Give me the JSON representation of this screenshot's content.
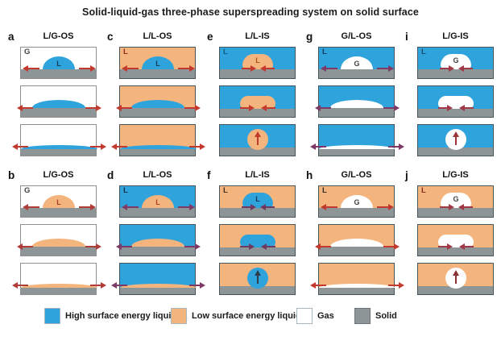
{
  "title": "Solid-liquid-gas three-phase superspreading system on solid surface",
  "colors": {
    "high_surface_energy_liquid": "#2fa3dc",
    "low_surface_energy_liquid": "#f3b47e",
    "gas": "#ffffff",
    "solid": "#8e9596",
    "box_border_dark": "#47555b",
    "box_border_light": "#8f8f8f"
  },
  "panels": [
    {
      "letter": "a",
      "title": "L/G-OS",
      "background": "gas",
      "background_label": "G",
      "background_label_color": "#3f3f3f",
      "droplet": "high_surface_energy_liquid",
      "droplet_label": "L",
      "droplet_label_color": "#14395a",
      "behavior": "outward_spreading",
      "arrow_color": "#c23a2d",
      "arrow_up_color": ""
    },
    {
      "letter": "c",
      "title": "L/L-OS",
      "background": "low_surface_energy_liquid",
      "background_label": "L",
      "background_label_color": "#93291f",
      "droplet": "high_surface_energy_liquid",
      "droplet_label": "L",
      "droplet_label_color": "#14395a",
      "behavior": "outward_spreading",
      "arrow_color": "#c23a2d",
      "arrow_up_color": ""
    },
    {
      "letter": "e",
      "title": "L/L-IS",
      "background": "high_surface_energy_liquid",
      "background_label": "L",
      "background_label_color": "#0c6086",
      "droplet": "low_surface_energy_liquid",
      "droplet_label": "L",
      "droplet_label_color": "#b25417",
      "behavior": "inward_dewetting",
      "arrow_color": "#c23a2d",
      "arrow_up_color": "#c0392b"
    },
    {
      "letter": "g",
      "title": "G/L-OS",
      "background": "high_surface_energy_liquid",
      "background_label": "L",
      "background_label_color": "#123a60",
      "droplet": "gas",
      "droplet_label": "G",
      "droplet_label_color": "#3f3f3f",
      "behavior": "outward_spreading",
      "arrow_color": "#7d3a66",
      "arrow_up_color": ""
    },
    {
      "letter": "i",
      "title": "L/G-IS",
      "background": "high_surface_energy_liquid",
      "background_label": "L",
      "background_label_color": "#1c4a70",
      "droplet": "gas",
      "droplet_label": "G",
      "droplet_label_color": "#3f3f3f",
      "behavior": "inward_dewetting",
      "arrow_color": "#a03845",
      "arrow_up_color": "#9c3636"
    },
    {
      "letter": "b",
      "title": "L/G-OS",
      "background": "gas",
      "background_label": "G",
      "background_label_color": "#3f3f3f",
      "droplet": "low_surface_energy_liquid",
      "droplet_label": "L",
      "droplet_label_color": "#a8432a",
      "behavior": "outward_spreading",
      "arrow_color": "#b03c3a",
      "arrow_up_color": ""
    },
    {
      "letter": "d",
      "title": "L/L-OS",
      "background": "high_surface_energy_liquid",
      "background_label": "L",
      "background_label_color": "#12314f",
      "droplet": "low_surface_energy_liquid",
      "droplet_label": "L",
      "droplet_label_color": "#a8432a",
      "behavior": "outward_spreading",
      "arrow_color": "#7d3a66",
      "arrow_up_color": ""
    },
    {
      "letter": "f",
      "title": "L/L-IS",
      "background": "low_surface_energy_liquid",
      "background_label": "L",
      "background_label_color": "#4a3118",
      "droplet": "high_surface_energy_liquid",
      "droplet_label": "L",
      "droplet_label_color": "#14395a",
      "behavior": "inward_dewetting",
      "arrow_color": "#6e3a60",
      "arrow_up_color": "#2c3e50"
    },
    {
      "letter": "h",
      "title": "G/L-OS",
      "background": "low_surface_energy_liquid",
      "background_label": "L",
      "background_label_color": "#2e2e2e",
      "droplet": "gas",
      "droplet_label": "G",
      "droplet_label_color": "#3f3f3f",
      "behavior": "outward_spreading",
      "arrow_color": "#c23a2d",
      "arrow_up_color": ""
    },
    {
      "letter": "j",
      "title": "L/G-IS",
      "background": "low_surface_energy_liquid",
      "background_label": "L",
      "background_label_color": "#8a2c22",
      "droplet": "gas",
      "droplet_label": "G",
      "droplet_label_color": "#3f3f3f",
      "behavior": "inward_dewetting",
      "arrow_color": "#a03845",
      "arrow_up_color": "#8d3232"
    }
  ],
  "legend": [
    {
      "label": "High surface energy liquid",
      "color": "high_surface_energy_liquid"
    },
    {
      "label": "Low surface energy liquid",
      "color": "low_surface_energy_liquid"
    },
    {
      "label": "Gas",
      "color": "gas"
    },
    {
      "label": "Solid",
      "color": "solid"
    }
  ]
}
